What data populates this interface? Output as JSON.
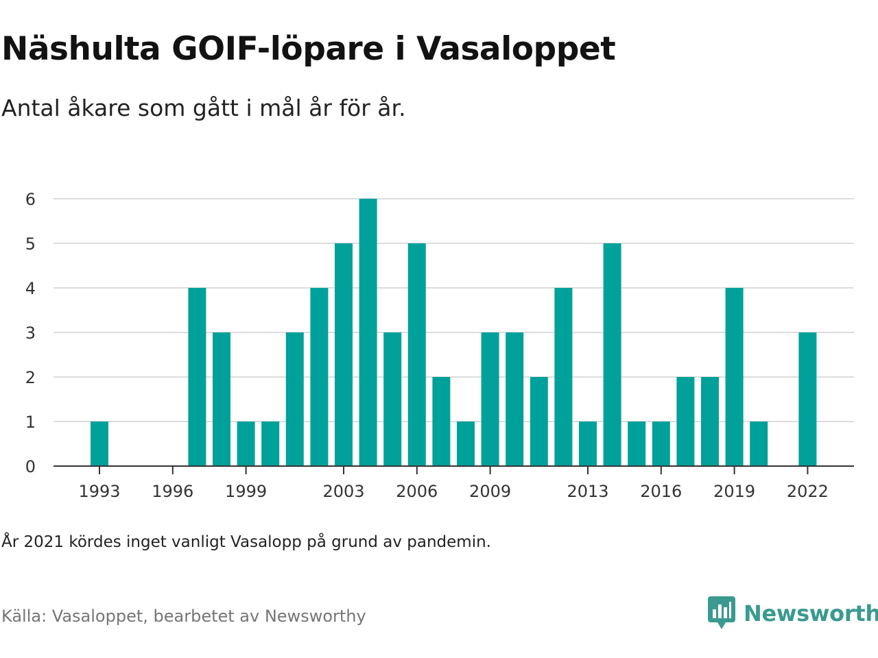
{
  "header": {
    "title": "Näshulta GOIF-löpare i Vasaloppet",
    "subtitle": "Antal åkare som gått i mål år för år."
  },
  "chart_data": {
    "type": "bar",
    "title": "Näshulta GOIF-löpare i Vasaloppet",
    "subtitle": "Antal åkare som gått i mål år för år.",
    "xlabel": "",
    "ylabel": "",
    "ylim": [
      0,
      6
    ],
    "yticks": [
      0,
      1,
      2,
      3,
      4,
      5,
      6
    ],
    "xtick_labels": [
      "1993",
      "1996",
      "1999",
      "2003",
      "2006",
      "2009",
      "2013",
      "2016",
      "2019",
      "2022"
    ],
    "grid": true,
    "bar_color": "#00a19a",
    "categories": [
      1993,
      1994,
      1995,
      1996,
      1997,
      1998,
      1999,
      2000,
      2001,
      2002,
      2003,
      2004,
      2005,
      2006,
      2007,
      2008,
      2009,
      2010,
      2011,
      2012,
      2013,
      2014,
      2015,
      2016,
      2017,
      2018,
      2019,
      2020,
      2021,
      2022
    ],
    "values": [
      1,
      0,
      0,
      0,
      4,
      3,
      1,
      1,
      3,
      4,
      5,
      6,
      3,
      5,
      2,
      1,
      3,
      3,
      2,
      4,
      1,
      5,
      1,
      1,
      2,
      2,
      4,
      1,
      0,
      3
    ]
  },
  "footer": {
    "note": "År 2021 kördes inget vanligt Vasalopp på grund av pandemin.",
    "source": "Källa: Vasaloppet, bearbetet av Newsworthy",
    "brand": "Newsworthy",
    "brand_color": "#3a9a8f",
    "brand_icon": "newsworthy-logo-icon"
  }
}
